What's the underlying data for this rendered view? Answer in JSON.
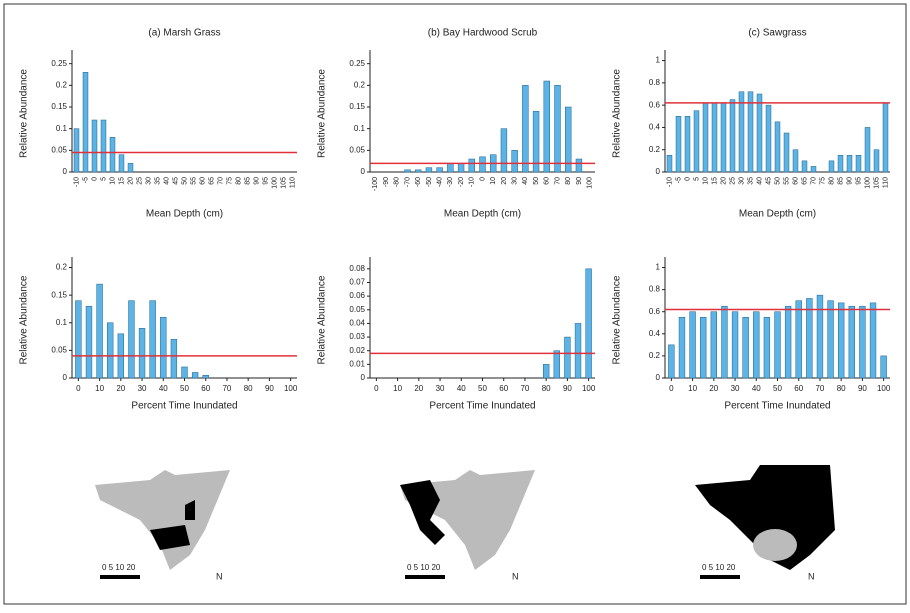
{
  "chart_data": [
    {
      "type": "bar",
      "title": "(a) Marsh Grass",
      "xlabel": "Mean Depth (cm)",
      "ylabel": "Relative Abundance",
      "color": "#5bb4e5",
      "categories": [
        "-10",
        "-5",
        "0",
        "5",
        "10",
        "15",
        "20",
        "25",
        "30",
        "35",
        "40",
        "45",
        "50",
        "55",
        "60",
        "65",
        "70",
        "75",
        "80",
        "85",
        "90",
        "95",
        "100",
        "105",
        "110"
      ],
      "values": [
        0.1,
        0.23,
        0.12,
        0.12,
        0.08,
        0.04,
        0.02,
        0,
        0,
        0,
        0,
        0,
        0,
        0,
        0,
        0,
        0,
        0,
        0,
        0,
        0,
        0,
        0,
        0,
        0
      ],
      "ylim": [
        0,
        0.27
      ],
      "yticks": [
        0,
        0.05,
        0.1,
        0.15,
        0.2,
        0.25
      ],
      "reference_line": 0.045,
      "reference_color": "#e0303a"
    },
    {
      "type": "bar",
      "title": "(b) Bay Hardwood Scrub",
      "xlabel": "Mean Depth (cm)",
      "ylabel": "Relative Abundance",
      "color": "#5bb4e5",
      "categories": [
        "-100",
        "-90",
        "-80",
        "-70",
        "-60",
        "-50",
        "-40",
        "-30",
        "-20",
        "-10",
        "0",
        "10",
        "20",
        "30",
        "40",
        "50",
        "60",
        "70",
        "80",
        "90",
        "100"
      ],
      "values": [
        0,
        0,
        0,
        0.005,
        0.005,
        0.01,
        0.01,
        0.02,
        0.02,
        0.03,
        0.035,
        0.04,
        0.1,
        0.05,
        0.2,
        0.14,
        0.21,
        0.2,
        0.15,
        0.03,
        0
      ],
      "ylim": [
        0,
        0.27
      ],
      "yticks": [
        0,
        0.05,
        0.1,
        0.15,
        0.2,
        0.25
      ],
      "reference_line": 0.02,
      "reference_color": "#e0303a"
    },
    {
      "type": "bar",
      "title": "(c) Sawgrass",
      "xlabel": "Mean Depth (cm)",
      "ylabel": "Relative Abundance",
      "color": "#5bb4e5",
      "categories": [
        "-10",
        "-5",
        "0",
        "5",
        "10",
        "15",
        "20",
        "25",
        "30",
        "35",
        "40",
        "45",
        "50",
        "55",
        "60",
        "65",
        "70",
        "75",
        "80",
        "85",
        "90",
        "95",
        "100",
        "105",
        "110"
      ],
      "values": [
        0.15,
        0.5,
        0.5,
        0.55,
        0.62,
        0.62,
        0.62,
        0.65,
        0.72,
        0.72,
        0.7,
        0.6,
        0.45,
        0.35,
        0.2,
        0.1,
        0.05,
        0,
        0.1,
        0.15,
        0.15,
        0.15,
        0.4,
        0.2,
        0.62
      ],
      "ylim": [
        0,
        1.05
      ],
      "yticks": [
        0,
        0.2,
        0.4,
        0.6,
        0.8,
        1
      ],
      "reference_line": 0.62,
      "reference_color": "#e0303a"
    },
    {
      "type": "bar",
      "xlabel": "Percent Time Inundated",
      "ylabel": "Relative Abundance",
      "color": "#5bb4e5",
      "x": [
        0,
        5,
        10,
        15,
        20,
        25,
        30,
        35,
        40,
        45,
        50,
        55,
        60,
        65,
        70,
        75,
        80,
        85,
        90,
        95,
        100
      ],
      "values": [
        0.14,
        0.13,
        0.17,
        0.1,
        0.08,
        0.14,
        0.09,
        0.14,
        0.11,
        0.07,
        0.02,
        0.01,
        0.005,
        0,
        0,
        0,
        0,
        0,
        0,
        0,
        0
      ],
      "xlim": [
        -3,
        103
      ],
      "xticks": [
        0,
        10,
        20,
        30,
        40,
        50,
        60,
        70,
        80,
        90,
        100
      ],
      "ylim": [
        0,
        0.21
      ],
      "yticks": [
        0,
        0.05,
        0.1,
        0.15,
        0.2
      ],
      "reference_line": 0.04,
      "reference_color": "#e0303a"
    },
    {
      "type": "bar",
      "xlabel": "Percent Time Inundated",
      "ylabel": "Relative Abundance",
      "color": "#5bb4e5",
      "x": [
        0,
        5,
        10,
        15,
        20,
        25,
        30,
        35,
        40,
        45,
        50,
        55,
        60,
        65,
        70,
        75,
        80,
        85,
        90,
        95,
        100
      ],
      "values": [
        0,
        0,
        0,
        0,
        0,
        0,
        0,
        0,
        0,
        0,
        0,
        0,
        0,
        0,
        0,
        0,
        0.01,
        0.02,
        0.03,
        0.04,
        0.08
      ],
      "xlim": [
        -3,
        103
      ],
      "xticks": [
        0,
        10,
        20,
        30,
        40,
        50,
        60,
        70,
        80,
        90,
        100
      ],
      "ylim": [
        0,
        0.085
      ],
      "yticks": [
        0,
        0.01,
        0.02,
        0.03,
        0.04,
        0.05,
        0.06,
        0.07,
        0.08
      ],
      "reference_line": 0.018,
      "reference_color": "#e0303a"
    },
    {
      "type": "bar",
      "xlabel": "Percent Time Inundated",
      "ylabel": "Relative Abundance",
      "color": "#5bb4e5",
      "x": [
        0,
        5,
        10,
        15,
        20,
        25,
        30,
        35,
        40,
        45,
        50,
        55,
        60,
        65,
        70,
        75,
        80,
        85,
        90,
        95,
        100
      ],
      "values": [
        0.3,
        0.55,
        0.6,
        0.55,
        0.6,
        0.65,
        0.6,
        0.55,
        0.6,
        0.55,
        0.6,
        0.65,
        0.7,
        0.72,
        0.75,
        0.7,
        0.68,
        0.65,
        0.65,
        0.68,
        0.2
      ],
      "xlim": [
        -3,
        103
      ],
      "xticks": [
        0,
        10,
        20,
        30,
        40,
        50,
        60,
        70,
        80,
        90,
        100
      ],
      "ylim": [
        0,
        1.05
      ],
      "yticks": [
        0,
        0.2,
        0.4,
        0.6,
        0.8,
        1
      ],
      "reference_line": 0.62,
      "reference_color": "#e0303a"
    }
  ],
  "maps": [
    {
      "scale": "0 5 10 20",
      "north": "N"
    },
    {
      "scale": "0 5 10 20",
      "north": "N"
    },
    {
      "scale": "0 5 10 20",
      "north": "N"
    }
  ]
}
